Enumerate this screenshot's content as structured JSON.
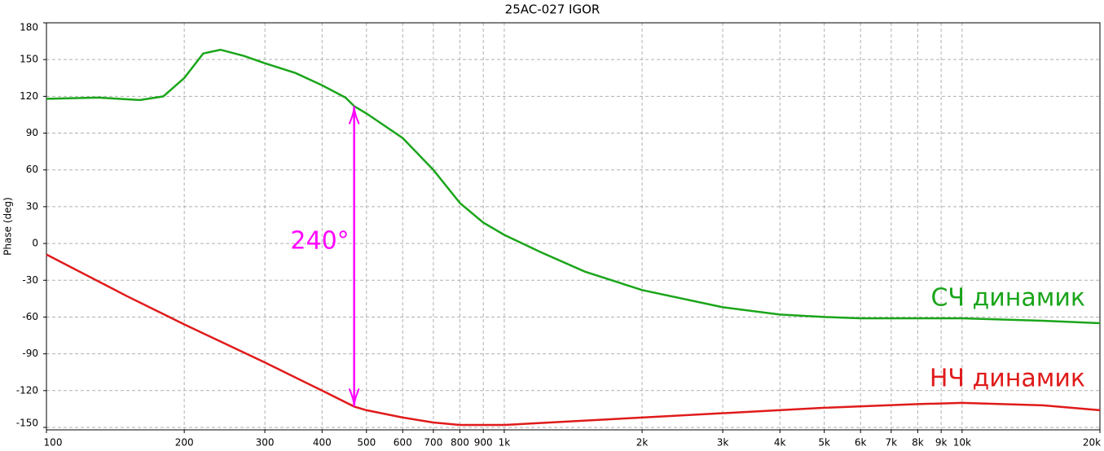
{
  "chart_data": {
    "type": "line",
    "title": "25AC-027 IGOR",
    "y_label": "Phase (deg)",
    "xscale": "log",
    "grid": true,
    "xlim": [
      100,
      20000
    ],
    "ylim": [
      -152,
      180
    ],
    "xticks": [
      100,
      200,
      300,
      400,
      500,
      600,
      700,
      800,
      900,
      {
        "value": 1000,
        "label": "1k"
      },
      {
        "value": 2000,
        "label": "2k"
      },
      {
        "value": 3000,
        "label": "3k"
      },
      {
        "value": 4000,
        "label": "4k"
      },
      {
        "value": 5000,
        "label": "5k"
      },
      {
        "value": 6000,
        "label": "6k"
      },
      {
        "value": 7000,
        "label": "7k"
      },
      {
        "value": 8000,
        "label": "8k"
      },
      {
        "value": 9000,
        "label": "9k"
      },
      {
        "value": 10000,
        "label": "10k"
      },
      {
        "value": 20000,
        "label": "20k"
      }
    ],
    "yticks": [
      180,
      150,
      120,
      90,
      60,
      30,
      0,
      -30,
      -60,
      -90,
      -120,
      -150
    ],
    "series": [
      {
        "name": "СЧ динамик",
        "color": "#1aa51a",
        "x": [
          100,
          130,
          160,
          180,
          200,
          220,
          240,
          270,
          300,
          350,
          400,
          450,
          470,
          500,
          600,
          700,
          800,
          900,
          1000,
          1200,
          1500,
          2000,
          3000,
          4000,
          5000,
          6000,
          8000,
          10000,
          15000,
          20000
        ],
        "values": [
          118,
          119,
          117,
          120,
          135,
          155,
          158,
          153,
          147,
          139,
          129,
          119,
          112,
          106,
          86,
          60,
          33,
          17,
          7,
          -7,
          -23,
          -38,
          -52,
          -58,
          -60,
          -61,
          -61,
          -61,
          -63,
          -65
        ]
      },
      {
        "name": "НЧ динамик",
        "color": "#e01a1a",
        "x": [
          100,
          150,
          200,
          300,
          400,
          470,
          500,
          600,
          700,
          800,
          900,
          1000,
          2000,
          5000,
          8000,
          10000,
          15000,
          20000
        ],
        "values": [
          -9,
          -43,
          -66,
          -97,
          -120,
          -133,
          -136,
          -142,
          -146,
          -148,
          -148,
          -148,
          -142,
          -134,
          -131,
          -130,
          -132,
          -136
        ]
      }
    ],
    "annotations": [
      {
        "text": "240°",
        "x": 470,
        "color": "#ff00ff"
      }
    ]
  }
}
